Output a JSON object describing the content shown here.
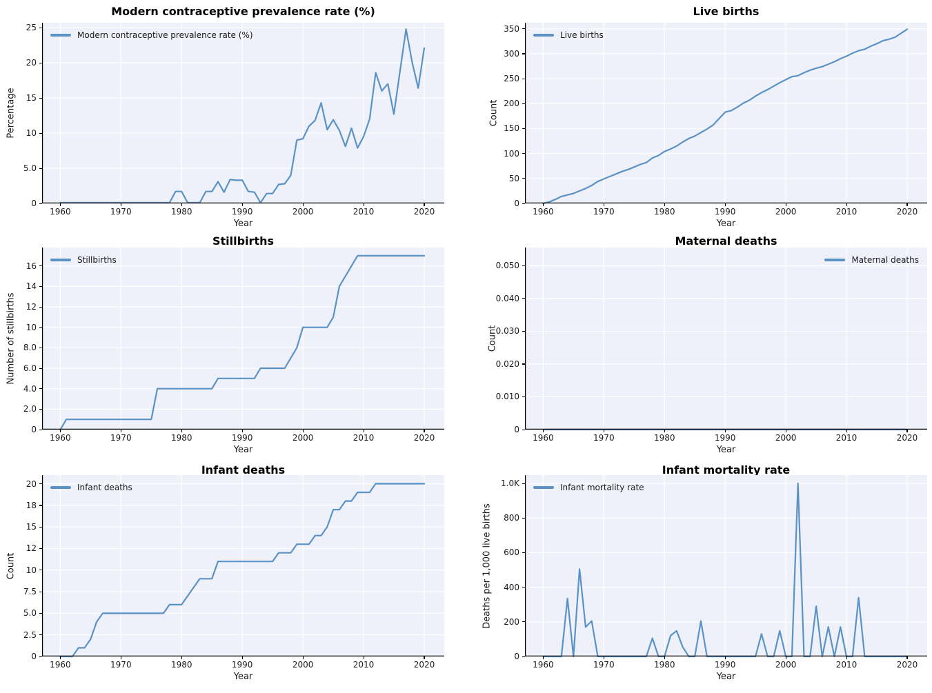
{
  "colors": {
    "line": "#5b92c5",
    "plot_bg": "#eef0fa",
    "grid": "#ffffff",
    "spine": "#000000",
    "text": "#1a1a1a"
  },
  "chart_data": [
    {
      "type": "line",
      "title": "Modern contraceptive prevalence rate (%)",
      "legend": "Modern contraceptive prevalence rate (%)",
      "legend_position": "upper-left",
      "xlabel": "Year",
      "ylabel": "Percentage",
      "grid": true,
      "xlim": [
        1957,
        2023.3
      ],
      "ylim": [
        0,
        25.7
      ],
      "xticks": [
        1960,
        1970,
        1980,
        1990,
        2000,
        2010,
        2020
      ],
      "ytick_values": [
        0,
        5,
        10,
        15,
        20,
        25
      ],
      "ytick_labels": [
        "0",
        "5.0",
        "10",
        "15",
        "20",
        "25"
      ],
      "x": [
        1960,
        1961,
        1962,
        1963,
        1964,
        1965,
        1966,
        1967,
        1968,
        1969,
        1970,
        1971,
        1972,
        1973,
        1974,
        1975,
        1976,
        1977,
        1978,
        1979,
        1980,
        1981,
        1982,
        1983,
        1984,
        1985,
        1986,
        1987,
        1988,
        1989,
        1990,
        1991,
        1992,
        1993,
        1994,
        1995,
        1996,
        1997,
        1998,
        1999,
        2000,
        2001,
        2002,
        2003,
        2004,
        2005,
        2006,
        2007,
        2008,
        2009,
        2010,
        2011,
        2012,
        2013,
        2014,
        2015,
        2016,
        2017,
        2018,
        2019,
        2020
      ],
      "values": [
        0.1,
        0.1,
        0.1,
        0.1,
        0.1,
        0.1,
        0.1,
        0.1,
        0.1,
        0.1,
        0.1,
        0.1,
        0.1,
        0.1,
        0.1,
        0.1,
        0.1,
        0.1,
        0.1,
        1.7,
        1.7,
        0.1,
        0.1,
        0.1,
        1.7,
        1.7,
        3.1,
        1.6,
        3.4,
        3.3,
        3.3,
        1.7,
        1.6,
        0.1,
        1.4,
        1.4,
        2.7,
        2.8,
        4.0,
        9.0,
        9.2,
        11.0,
        11.8,
        14.3,
        10.5,
        11.9,
        10.4,
        8.1,
        10.7,
        7.9,
        9.5,
        12.0,
        18.6,
        16.0,
        17.0,
        12.7,
        18.8,
        24.8,
        20.1,
        16.4,
        22.1
      ]
    },
    {
      "type": "line",
      "title": "Live births",
      "legend": "Live births",
      "legend_position": "upper-left",
      "xlabel": "Year",
      "ylabel": "Count",
      "grid": true,
      "xlim": [
        1957,
        2023.3
      ],
      "ylim": [
        0,
        362
      ],
      "xticks": [
        1960,
        1970,
        1980,
        1990,
        2000,
        2010,
        2020
      ],
      "ytick_values": [
        0,
        50,
        100,
        150,
        200,
        250,
        300,
        350
      ],
      "ytick_labels": [
        "0",
        "50",
        "100",
        "150",
        "200",
        "250",
        "300",
        "350"
      ],
      "x": [
        1960,
        1961,
        1962,
        1963,
        1964,
        1965,
        1966,
        1967,
        1968,
        1969,
        1970,
        1971,
        1972,
        1973,
        1974,
        1975,
        1976,
        1977,
        1978,
        1979,
        1980,
        1981,
        1982,
        1983,
        1984,
        1985,
        1986,
        1987,
        1988,
        1989,
        1990,
        1991,
        1992,
        1993,
        1994,
        1995,
        1996,
        1997,
        1998,
        1999,
        2000,
        2001,
        2002,
        2003,
        2004,
        2005,
        2006,
        2007,
        2008,
        2009,
        2010,
        2011,
        2012,
        2013,
        2014,
        2015,
        2016,
        2017,
        2018,
        2019,
        2020
      ],
      "values": [
        0,
        3,
        8,
        14,
        17,
        20,
        25,
        30,
        36,
        44,
        49,
        54,
        59,
        64,
        68,
        73,
        78,
        82,
        91,
        96,
        104,
        109,
        115,
        123,
        130,
        135,
        142,
        149,
        157,
        170,
        183,
        186,
        193,
        201,
        207,
        215,
        222,
        228,
        235,
        242,
        248,
        254,
        256,
        262,
        267,
        271,
        274,
        279,
        284,
        290,
        295,
        301,
        306,
        309,
        315,
        320,
        326,
        329,
        333,
        341,
        349
      ]
    },
    {
      "type": "line",
      "title": "Stillbirths",
      "legend": "Stillbirths",
      "legend_position": "upper-left",
      "xlabel": "Year",
      "ylabel": "Number of stillbirths",
      "grid": true,
      "xlim": [
        1957,
        2023.3
      ],
      "ylim": [
        0,
        17.8
      ],
      "xticks": [
        1960,
        1970,
        1980,
        1990,
        2000,
        2010,
        2020
      ],
      "ytick_values": [
        0,
        2,
        4,
        6,
        8,
        10,
        12,
        14,
        16
      ],
      "ytick_labels": [
        "0",
        "2.0",
        "4.0",
        "6.0",
        "8.0",
        "10",
        "12",
        "14",
        "16"
      ],
      "x": [
        1960,
        1961,
        1962,
        1963,
        1964,
        1965,
        1966,
        1967,
        1968,
        1969,
        1970,
        1971,
        1972,
        1973,
        1974,
        1975,
        1976,
        1977,
        1978,
        1979,
        1980,
        1981,
        1982,
        1983,
        1984,
        1985,
        1986,
        1987,
        1988,
        1989,
        1990,
        1991,
        1992,
        1993,
        1994,
        1995,
        1996,
        1997,
        1998,
        1999,
        2000,
        2001,
        2002,
        2003,
        2004,
        2005,
        2006,
        2007,
        2008,
        2009,
        2010,
        2011,
        2012,
        2013,
        2014,
        2015,
        2016,
        2017,
        2018,
        2019,
        2020
      ],
      "values": [
        0,
        1,
        1,
        1,
        1,
        1,
        1,
        1,
        1,
        1,
        1,
        1,
        1,
        1,
        1,
        1,
        4,
        4,
        4,
        4,
        4,
        4,
        4,
        4,
        4,
        4,
        5,
        5,
        5,
        5,
        5,
        5,
        5,
        6,
        6,
        6,
        6,
        6,
        7,
        8,
        10,
        10,
        10,
        10,
        10,
        11,
        14,
        15,
        16,
        17,
        17,
        17,
        17,
        17,
        17,
        17,
        17,
        17,
        17,
        17,
        17
      ]
    },
    {
      "type": "line",
      "title": "Maternal deaths",
      "legend": "Maternal deaths",
      "legend_position": "upper-right",
      "xlabel": "Year",
      "ylabel": "Count",
      "grid": true,
      "xlim": [
        1957,
        2023.3
      ],
      "ylim": [
        0,
        0.0555
      ],
      "xticks": [
        1960,
        1970,
        1980,
        1990,
        2000,
        2010,
        2020
      ],
      "ytick_values": [
        0,
        0.01,
        0.02,
        0.03,
        0.04,
        0.05
      ],
      "ytick_labels": [
        "0",
        "0.010",
        "0.020",
        "0.030",
        "0.040",
        "0.050"
      ],
      "x": [
        1960,
        1961,
        1962,
        1963,
        1964,
        1965,
        1966,
        1967,
        1968,
        1969,
        1970,
        1971,
        1972,
        1973,
        1974,
        1975,
        1976,
        1977,
        1978,
        1979,
        1980,
        1981,
        1982,
        1983,
        1984,
        1985,
        1986,
        1987,
        1988,
        1989,
        1990,
        1991,
        1992,
        1993,
        1994,
        1995,
        1996,
        1997,
        1998,
        1999,
        2000,
        2001,
        2002,
        2003,
        2004,
        2005,
        2006,
        2007,
        2008,
        2009,
        2010,
        2011,
        2012,
        2013,
        2014,
        2015,
        2016,
        2017,
        2018,
        2019,
        2020
      ],
      "values": [
        0,
        0,
        0,
        0,
        0,
        0,
        0,
        0,
        0,
        0,
        0,
        0,
        0,
        0,
        0,
        0,
        0,
        0,
        0,
        0,
        0,
        0,
        0,
        0,
        0,
        0,
        0,
        0,
        0,
        0,
        0,
        0,
        0,
        0,
        0,
        0,
        0,
        0,
        0,
        0,
        0,
        0,
        0,
        0,
        0,
        0,
        0,
        0,
        0,
        0,
        0,
        0,
        0,
        0,
        0,
        0,
        0,
        0,
        0,
        0,
        0
      ]
    },
    {
      "type": "line",
      "title": "Infant deaths",
      "legend": "Infant deaths",
      "legend_position": "upper-left",
      "xlabel": "Year",
      "ylabel": "Count",
      "grid": true,
      "xlim": [
        1957,
        2023.3
      ],
      "ylim": [
        0,
        21
      ],
      "xticks": [
        1960,
        1970,
        1980,
        1990,
        2000,
        2010,
        2020
      ],
      "ytick_values": [
        0,
        2.5,
        5,
        7.5,
        10,
        12.5,
        15,
        17.5,
        20
      ],
      "ytick_labels": [
        "0",
        "2.5",
        "5.0",
        "7.5",
        "10",
        "12",
        "15",
        "18",
        "20"
      ],
      "x": [
        1960,
        1961,
        1962,
        1963,
        1964,
        1965,
        1966,
        1967,
        1968,
        1969,
        1970,
        1971,
        1972,
        1973,
        1974,
        1975,
        1976,
        1977,
        1978,
        1979,
        1980,
        1981,
        1982,
        1983,
        1984,
        1985,
        1986,
        1987,
        1988,
        1989,
        1990,
        1991,
        1992,
        1993,
        1994,
        1995,
        1996,
        1997,
        1998,
        1999,
        2000,
        2001,
        2002,
        2003,
        2004,
        2005,
        2006,
        2007,
        2008,
        2009,
        2010,
        2011,
        2012,
        2013,
        2014,
        2015,
        2016,
        2017,
        2018,
        2019,
        2020
      ],
      "values": [
        0,
        0,
        0,
        1,
        1,
        2,
        4,
        5,
        5,
        5,
        5,
        5,
        5,
        5,
        5,
        5,
        5,
        5,
        6,
        6,
        6,
        7,
        8,
        9,
        9,
        9,
        11,
        11,
        11,
        11,
        11,
        11,
        11,
        11,
        11,
        11,
        12,
        12,
        12,
        13,
        13,
        13,
        14,
        14,
        15,
        17,
        17,
        18,
        18,
        19,
        19,
        19,
        20,
        20,
        20,
        20,
        20,
        20,
        20,
        20,
        20
      ]
    },
    {
      "type": "line",
      "title": "Infant mortality rate",
      "legend": "Infant mortality rate",
      "legend_position": "upper-left",
      "xlabel": "Year",
      "ylabel": "Deaths per 1,000 live births",
      "grid": true,
      "xlim": [
        1957,
        2023.3
      ],
      "ylim": [
        0,
        1048
      ],
      "xticks": [
        1960,
        1970,
        1980,
        1990,
        2000,
        2010,
        2020
      ],
      "ytick_values": [
        0,
        200,
        400,
        600,
        800,
        1000
      ],
      "ytick_labels": [
        "0",
        "200",
        "400",
        "600",
        "800",
        "1.0K"
      ],
      "x": [
        1960,
        1961,
        1962,
        1963,
        1964,
        1965,
        1966,
        1967,
        1968,
        1969,
        1970,
        1971,
        1972,
        1973,
        1974,
        1975,
        1976,
        1977,
        1978,
        1979,
        1980,
        1981,
        1982,
        1983,
        1984,
        1985,
        1986,
        1987,
        1988,
        1989,
        1990,
        1991,
        1992,
        1993,
        1994,
        1995,
        1996,
        1997,
        1998,
        1999,
        2000,
        2001,
        2002,
        2003,
        2004,
        2005,
        2006,
        2007,
        2008,
        2009,
        2010,
        2011,
        2012,
        2013,
        2014,
        2015,
        2016,
        2017,
        2018,
        2019,
        2020
      ],
      "values": [
        0,
        0,
        0,
        0,
        335,
        0,
        505,
        170,
        205,
        0,
        0,
        0,
        0,
        0,
        0,
        0,
        0,
        0,
        105,
        0,
        0,
        120,
        148,
        55,
        0,
        0,
        205,
        0,
        0,
        0,
        0,
        0,
        0,
        0,
        0,
        0,
        130,
        0,
        0,
        148,
        0,
        0,
        1000,
        0,
        0,
        290,
        0,
        170,
        0,
        170,
        0,
        0,
        340,
        0,
        0,
        0,
        0,
        0,
        0,
        0,
        0
      ]
    }
  ]
}
